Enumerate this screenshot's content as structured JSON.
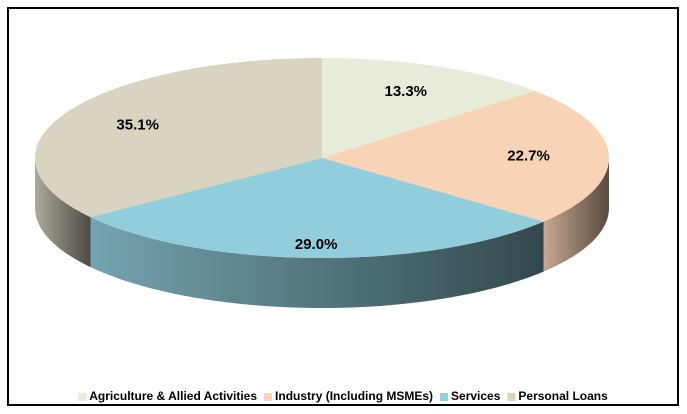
{
  "chart_data": {
    "type": "pie",
    "categories": [
      "Agriculture & Allied Activities",
      "Industry (Including MSMEs)",
      "Services",
      "Personal Loans"
    ],
    "values": [
      13.3,
      22.7,
      29.0,
      35.1
    ],
    "value_labels": [
      "13.3%",
      "22.7%",
      "29.0%",
      "35.1%"
    ],
    "colors": [
      "#e6ecd9",
      "#f9d3b5",
      "#92cddc",
      "#d8d4c0"
    ],
    "legend": "bottom"
  }
}
